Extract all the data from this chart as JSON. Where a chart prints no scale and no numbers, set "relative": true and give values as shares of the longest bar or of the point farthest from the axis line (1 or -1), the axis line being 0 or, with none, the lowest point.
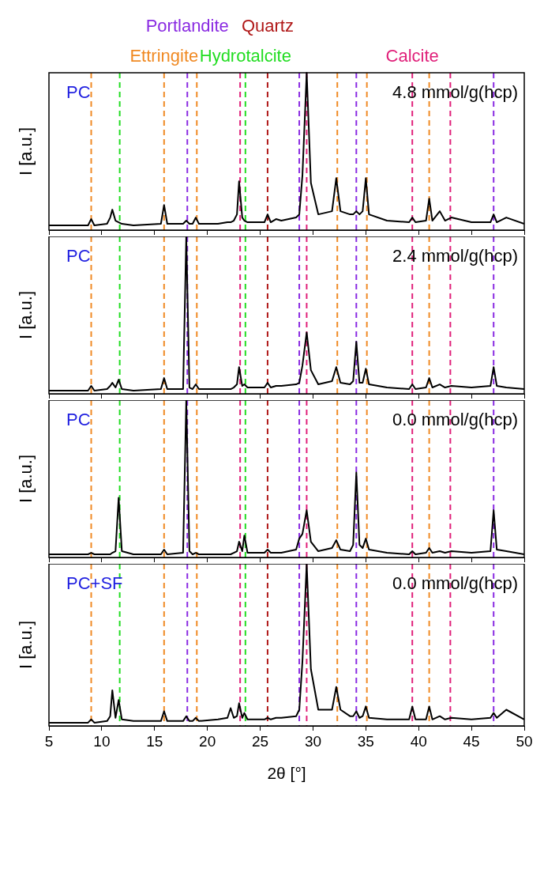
{
  "chart_data": [
    {
      "type": "line",
      "relative": true,
      "annotations": [
        "PC",
        "4.8 mmol/g(hcp)"
      ],
      "ylabel": "I [a.u.]",
      "tick_labels": false,
      "xlim": [
        5,
        50
      ],
      "xticks": [
        5,
        10,
        15,
        20,
        25,
        30,
        35,
        40,
        45,
        50
      ],
      "x": [
        5,
        7,
        8.7,
        9.0,
        9.3,
        10.5,
        10.8,
        11.0,
        11.3,
        11.6,
        11.9,
        13,
        15.6,
        15.9,
        16.2,
        17.7,
        18.0,
        18.3,
        18.6,
        18.9,
        19.2,
        21,
        21.9,
        22.2,
        22.5,
        22.8,
        23.0,
        23.3,
        23.5,
        23.8,
        25.4,
        25.7,
        26.0,
        26.5,
        27,
        28.4,
        28.7,
        29.0,
        29.4,
        29.8,
        30.5,
        31.8,
        32.2,
        32.6,
        33.5,
        33.8,
        34.1,
        34.4,
        34.7,
        35.0,
        35.3,
        37,
        39.1,
        39.4,
        39.7,
        40.7,
        41.0,
        41.3,
        42.0,
        42.5,
        43.1,
        45,
        46.8,
        47.1,
        47.4,
        48.3,
        50
      ],
      "series": [
        {
          "color": "#000000",
          "values": [
            0.03,
            0.03,
            0.03,
            0.07,
            0.03,
            0.04,
            0.08,
            0.13,
            0.06,
            0.05,
            0.04,
            0.03,
            0.04,
            0.16,
            0.04,
            0.04,
            0.06,
            0.04,
            0.04,
            0.08,
            0.04,
            0.04,
            0.05,
            0.05,
            0.06,
            0.1,
            0.31,
            0.08,
            0.06,
            0.05,
            0.05,
            0.1,
            0.05,
            0.07,
            0.06,
            0.08,
            0.1,
            0.35,
            1,
            0.3,
            0.1,
            0.12,
            0.33,
            0.12,
            0.1,
            0.1,
            0.12,
            0.1,
            0.12,
            0.33,
            0.1,
            0.06,
            0.05,
            0.08,
            0.05,
            0.06,
            0.2,
            0.06,
            0.12,
            0.06,
            0.08,
            0.05,
            0.05,
            0.1,
            0.05,
            0.08,
            0.04
          ]
        }
      ],
      "ref_lines": [
        {
          "axis": "x",
          "value": 9.0,
          "color": "#f08a24",
          "line_style": "dashed"
        },
        {
          "axis": "x",
          "value": 11.7,
          "color": "#22dd22",
          "line_style": "dashed"
        },
        {
          "axis": "x",
          "value": 15.9,
          "color": "#f08a24",
          "line_style": "dashed",
          "label": "Ettringite"
        },
        {
          "axis": "x",
          "value": 18.1,
          "color": "#8a2be2",
          "line_style": "dashed",
          "label": "Portlandite"
        },
        {
          "axis": "x",
          "value": 19.0,
          "color": "#f08a24",
          "line_style": "dashed"
        },
        {
          "axis": "x",
          "value": 23.1,
          "color": "#e0207a",
          "line_style": "dashed"
        },
        {
          "axis": "x",
          "value": 23.6,
          "color": "#22dd22",
          "line_style": "dashed",
          "label": "Hydrotalcite"
        },
        {
          "axis": "x",
          "value": 25.7,
          "color": "#b01818",
          "line_style": "dashed",
          "label": "Quartz"
        },
        {
          "axis": "x",
          "value": 28.7,
          "color": "#8a2be2",
          "line_style": "dashed"
        },
        {
          "axis": "x",
          "value": 29.4,
          "color": "#e0207a",
          "line_style": "dashed"
        },
        {
          "axis": "x",
          "value": 32.3,
          "color": "#f08a24",
          "line_style": "dashed"
        },
        {
          "axis": "x",
          "value": 34.1,
          "color": "#8a2be2",
          "line_style": "dashed"
        },
        {
          "axis": "x",
          "value": 35.1,
          "color": "#f08a24",
          "line_style": "dashed"
        },
        {
          "axis": "x",
          "value": 39.4,
          "color": "#e0207a",
          "line_style": "dashed",
          "label": "Calcite"
        },
        {
          "axis": "x",
          "value": 41.0,
          "color": "#f08a24",
          "line_style": "dashed"
        },
        {
          "axis": "x",
          "value": 43.0,
          "color": "#e0207a",
          "line_style": "dashed"
        },
        {
          "axis": "x",
          "value": 47.1,
          "color": "#8a2be2",
          "line_style": "dashed"
        }
      ]
    },
    {
      "type": "line",
      "relative": true,
      "annotations": [
        "PC",
        "2.4 mmol/g(hcp)"
      ],
      "ylabel": "I [a.u.]",
      "tick_labels": false,
      "xlim": [
        5,
        50
      ],
      "xticks": [
        5,
        10,
        15,
        20,
        25,
        30,
        35,
        40,
        45,
        50
      ],
      "x": [
        5,
        7,
        8.7,
        9.0,
        9.3,
        10.5,
        10.8,
        11.0,
        11.3,
        11.6,
        11.9,
        13,
        15.6,
        15.9,
        16.2,
        17.7,
        18.0,
        18.3,
        18.6,
        18.9,
        19.2,
        21,
        21.9,
        22.2,
        22.5,
        22.8,
        23.0,
        23.3,
        23.5,
        23.8,
        25.4,
        25.7,
        26.0,
        26.5,
        27,
        28.4,
        28.7,
        29.0,
        29.4,
        29.8,
        30.5,
        31.8,
        32.2,
        32.6,
        33.5,
        33.8,
        34.1,
        34.4,
        34.7,
        35.0,
        35.3,
        37,
        39.1,
        39.4,
        39.7,
        40.7,
        41.0,
        41.3,
        42.0,
        42.5,
        43.1,
        45,
        46.8,
        47.1,
        47.4,
        48.3,
        50
      ],
      "series": [
        {
          "color": "#000000",
          "values": [
            0.02,
            0.02,
            0.02,
            0.05,
            0.02,
            0.03,
            0.05,
            0.07,
            0.04,
            0.09,
            0.03,
            0.02,
            0.03,
            0.1,
            0.03,
            0.03,
            1,
            0.04,
            0.03,
            0.06,
            0.03,
            0.03,
            0.03,
            0.03,
            0.04,
            0.06,
            0.17,
            0.05,
            0.06,
            0.04,
            0.04,
            0.07,
            0.04,
            0.05,
            0.05,
            0.06,
            0.07,
            0.18,
            0.39,
            0.15,
            0.06,
            0.08,
            0.17,
            0.07,
            0.06,
            0.08,
            0.33,
            0.07,
            0.07,
            0.16,
            0.06,
            0.04,
            0.03,
            0.06,
            0.03,
            0.04,
            0.1,
            0.04,
            0.06,
            0.04,
            0.05,
            0.04,
            0.05,
            0.17,
            0.05,
            0.04,
            0.03
          ]
        }
      ],
      "ref_lines": [
        {
          "axis": "x",
          "value": 9.0,
          "color": "#f08a24",
          "line_style": "dashed"
        },
        {
          "axis": "x",
          "value": 11.7,
          "color": "#22dd22",
          "line_style": "dashed"
        },
        {
          "axis": "x",
          "value": 15.9,
          "color": "#f08a24",
          "line_style": "dashed"
        },
        {
          "axis": "x",
          "value": 18.1,
          "color": "#8a2be2",
          "line_style": "dashed"
        },
        {
          "axis": "x",
          "value": 19.0,
          "color": "#f08a24",
          "line_style": "dashed"
        },
        {
          "axis": "x",
          "value": 23.1,
          "color": "#e0207a",
          "line_style": "dashed"
        },
        {
          "axis": "x",
          "value": 23.6,
          "color": "#22dd22",
          "line_style": "dashed"
        },
        {
          "axis": "x",
          "value": 25.7,
          "color": "#b01818",
          "line_style": "dashed"
        },
        {
          "axis": "x",
          "value": 28.7,
          "color": "#8a2be2",
          "line_style": "dashed"
        },
        {
          "axis": "x",
          "value": 29.4,
          "color": "#e0207a",
          "line_style": "dashed"
        },
        {
          "axis": "x",
          "value": 32.3,
          "color": "#f08a24",
          "line_style": "dashed"
        },
        {
          "axis": "x",
          "value": 34.1,
          "color": "#8a2be2",
          "line_style": "dashed"
        },
        {
          "axis": "x",
          "value": 35.1,
          "color": "#f08a24",
          "line_style": "dashed"
        },
        {
          "axis": "x",
          "value": 39.4,
          "color": "#e0207a",
          "line_style": "dashed"
        },
        {
          "axis": "x",
          "value": 41.0,
          "color": "#f08a24",
          "line_style": "dashed"
        },
        {
          "axis": "x",
          "value": 43.0,
          "color": "#e0207a",
          "line_style": "dashed"
        },
        {
          "axis": "x",
          "value": 47.1,
          "color": "#8a2be2",
          "line_style": "dashed"
        }
      ]
    },
    {
      "type": "line",
      "relative": true,
      "annotations": [
        "PC",
        "0.0 mmol/g(hcp)"
      ],
      "ylabel": "I [a.u.]",
      "tick_labels": false,
      "xlim": [
        5,
        50
      ],
      "xticks": [
        5,
        10,
        15,
        20,
        25,
        30,
        35,
        40,
        45,
        50
      ],
      "x": [
        5,
        7,
        8.7,
        9.0,
        9.3,
        10.5,
        10.8,
        11.0,
        11.3,
        11.6,
        11.9,
        13,
        15.6,
        15.9,
        16.2,
        17.7,
        18.0,
        18.3,
        18.6,
        18.9,
        19.2,
        21,
        21.9,
        22.2,
        22.5,
        22.8,
        23.0,
        23.3,
        23.5,
        23.8,
        25.4,
        25.7,
        26.0,
        26.5,
        27,
        28.4,
        28.7,
        29.0,
        29.4,
        29.8,
        30.5,
        31.8,
        32.2,
        32.6,
        33.5,
        33.8,
        34.1,
        34.4,
        34.7,
        35.0,
        35.3,
        37,
        39.1,
        39.4,
        39.7,
        40.7,
        41.0,
        41.3,
        42.0,
        42.5,
        43.1,
        45,
        46.8,
        47.1,
        47.4,
        48.3,
        50
      ],
      "series": [
        {
          "color": "#000000",
          "values": [
            0.02,
            0.02,
            0.02,
            0.03,
            0.02,
            0.02,
            0.02,
            0.03,
            0.04,
            0.38,
            0.04,
            0.02,
            0.02,
            0.05,
            0.02,
            0.03,
            1,
            0.04,
            0.02,
            0.03,
            0.02,
            0.02,
            0.02,
            0.02,
            0.03,
            0.04,
            0.1,
            0.04,
            0.14,
            0.03,
            0.03,
            0.05,
            0.03,
            0.03,
            0.03,
            0.05,
            0.12,
            0.15,
            0.3,
            0.1,
            0.04,
            0.06,
            0.11,
            0.05,
            0.04,
            0.08,
            0.54,
            0.08,
            0.06,
            0.12,
            0.05,
            0.03,
            0.02,
            0.04,
            0.02,
            0.03,
            0.06,
            0.03,
            0.04,
            0.03,
            0.04,
            0.03,
            0.04,
            0.3,
            0.05,
            0.04,
            0.02
          ]
        }
      ],
      "ref_lines": [
        {
          "axis": "x",
          "value": 9.0,
          "color": "#f08a24",
          "line_style": "dashed"
        },
        {
          "axis": "x",
          "value": 11.7,
          "color": "#22dd22",
          "line_style": "dashed"
        },
        {
          "axis": "x",
          "value": 15.9,
          "color": "#f08a24",
          "line_style": "dashed"
        },
        {
          "axis": "x",
          "value": 18.1,
          "color": "#8a2be2",
          "line_style": "dashed"
        },
        {
          "axis": "x",
          "value": 19.0,
          "color": "#f08a24",
          "line_style": "dashed"
        },
        {
          "axis": "x",
          "value": 23.1,
          "color": "#e0207a",
          "line_style": "dashed"
        },
        {
          "axis": "x",
          "value": 23.6,
          "color": "#22dd22",
          "line_style": "dashed"
        },
        {
          "axis": "x",
          "value": 25.7,
          "color": "#b01818",
          "line_style": "dashed"
        },
        {
          "axis": "x",
          "value": 28.7,
          "color": "#8a2be2",
          "line_style": "dashed"
        },
        {
          "axis": "x",
          "value": 29.4,
          "color": "#e0207a",
          "line_style": "dashed"
        },
        {
          "axis": "x",
          "value": 32.3,
          "color": "#f08a24",
          "line_style": "dashed"
        },
        {
          "axis": "x",
          "value": 34.1,
          "color": "#8a2be2",
          "line_style": "dashed"
        },
        {
          "axis": "x",
          "value": 35.1,
          "color": "#f08a24",
          "line_style": "dashed"
        },
        {
          "axis": "x",
          "value": 39.4,
          "color": "#e0207a",
          "line_style": "dashed"
        },
        {
          "axis": "x",
          "value": 41.0,
          "color": "#f08a24",
          "line_style": "dashed"
        },
        {
          "axis": "x",
          "value": 43.0,
          "color": "#e0207a",
          "line_style": "dashed"
        },
        {
          "axis": "x",
          "value": 47.1,
          "color": "#8a2be2",
          "line_style": "dashed"
        }
      ]
    },
    {
      "type": "line",
      "relative": true,
      "annotations": [
        "PC+SF",
        "0.0 mmol/g(hcp)"
      ],
      "ylabel": "I [a.u.]",
      "xlabel": "2θ [°]",
      "tick_labels": "x",
      "xlim": [
        5,
        50
      ],
      "xticks": [
        5,
        10,
        15,
        20,
        25,
        30,
        35,
        40,
        45,
        50
      ],
      "x": [
        5,
        7,
        8.7,
        9.0,
        9.3,
        10.5,
        10.8,
        11.0,
        11.3,
        11.6,
        11.9,
        13,
        15.6,
        15.9,
        16.2,
        17.7,
        18.0,
        18.3,
        18.6,
        18.9,
        19.2,
        21,
        21.9,
        22.2,
        22.5,
        22.8,
        23.0,
        23.3,
        23.5,
        23.8,
        25.4,
        25.7,
        26.0,
        26.5,
        27,
        28.4,
        28.7,
        29.0,
        29.4,
        29.8,
        30.5,
        31.8,
        32.2,
        32.6,
        33.5,
        33.8,
        34.1,
        34.4,
        34.7,
        35.0,
        35.3,
        37,
        39.1,
        39.4,
        39.7,
        40.7,
        41.0,
        41.3,
        42.0,
        42.5,
        43.1,
        45,
        46.8,
        47.1,
        47.4,
        48.3,
        50
      ],
      "series": [
        {
          "color": "#000000",
          "values": [
            0.02,
            0.02,
            0.02,
            0.04,
            0.02,
            0.03,
            0.06,
            0.22,
            0.05,
            0.16,
            0.04,
            0.03,
            0.03,
            0.09,
            0.03,
            0.03,
            0.06,
            0.03,
            0.03,
            0.05,
            0.03,
            0.04,
            0.05,
            0.11,
            0.05,
            0.06,
            0.14,
            0.05,
            0.08,
            0.04,
            0.04,
            0.05,
            0.04,
            0.05,
            0.05,
            0.06,
            0.1,
            0.4,
            1,
            0.35,
            0.1,
            0.1,
            0.24,
            0.1,
            0.06,
            0.06,
            0.09,
            0.05,
            0.06,
            0.12,
            0.05,
            0.04,
            0.04,
            0.12,
            0.04,
            0.04,
            0.12,
            0.04,
            0.06,
            0.04,
            0.05,
            0.04,
            0.05,
            0.08,
            0.05,
            0.1,
            0.04
          ]
        }
      ],
      "ref_lines": [
        {
          "axis": "x",
          "value": 9.0,
          "color": "#f08a24",
          "line_style": "dashed"
        },
        {
          "axis": "x",
          "value": 11.7,
          "color": "#22dd22",
          "line_style": "dashed"
        },
        {
          "axis": "x",
          "value": 15.9,
          "color": "#f08a24",
          "line_style": "dashed"
        },
        {
          "axis": "x",
          "value": 18.1,
          "color": "#8a2be2",
          "line_style": "dashed"
        },
        {
          "axis": "x",
          "value": 19.0,
          "color": "#f08a24",
          "line_style": "dashed"
        },
        {
          "axis": "x",
          "value": 23.1,
          "color": "#e0207a",
          "line_style": "dashed"
        },
        {
          "axis": "x",
          "value": 23.6,
          "color": "#22dd22",
          "line_style": "dashed"
        },
        {
          "axis": "x",
          "value": 25.7,
          "color": "#b01818",
          "line_style": "dashed"
        },
        {
          "axis": "x",
          "value": 28.7,
          "color": "#8a2be2",
          "line_style": "dashed"
        },
        {
          "axis": "x",
          "value": 29.4,
          "color": "#e0207a",
          "line_style": "dashed"
        },
        {
          "axis": "x",
          "value": 32.3,
          "color": "#f08a24",
          "line_style": "dashed"
        },
        {
          "axis": "x",
          "value": 34.1,
          "color": "#8a2be2",
          "line_style": "dashed"
        },
        {
          "axis": "x",
          "value": 35.1,
          "color": "#f08a24",
          "line_style": "dashed"
        },
        {
          "axis": "x",
          "value": 39.4,
          "color": "#e0207a",
          "line_style": "dashed"
        },
        {
          "axis": "x",
          "value": 41.0,
          "color": "#f08a24",
          "line_style": "dashed"
        },
        {
          "axis": "x",
          "value": 43.0,
          "color": "#e0207a",
          "line_style": "dashed"
        },
        {
          "axis": "x",
          "value": 47.1,
          "color": "#8a2be2",
          "line_style": "dashed"
        }
      ]
    }
  ]
}
